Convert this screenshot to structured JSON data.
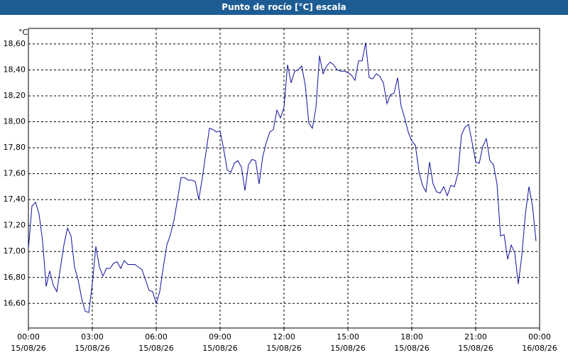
{
  "chart_data": {
    "type": "line",
    "title": "Punto de rocío [°C] escala",
    "y_label": "°C",
    "x": [
      0,
      10,
      20,
      30,
      40,
      50,
      60,
      70,
      80,
      90,
      100,
      110,
      120,
      130,
      140,
      150,
      160,
      170,
      180,
      190,
      200,
      210,
      220,
      230,
      240,
      250,
      260,
      270,
      280,
      290,
      300,
      310,
      320,
      330,
      340,
      350,
      360,
      370,
      380,
      390,
      400,
      410,
      420,
      430,
      440,
      450,
      460,
      470,
      480,
      490,
      500,
      510,
      520,
      530,
      540,
      550,
      560,
      570,
      580,
      590,
      600,
      610,
      620,
      630,
      640,
      650,
      660,
      670,
      680,
      690,
      700,
      710,
      720,
      730,
      740,
      750,
      760,
      770,
      780,
      790,
      800,
      810,
      820,
      830,
      840,
      850,
      860,
      870,
      880,
      890,
      900,
      910,
      920,
      930,
      940,
      950,
      960,
      970,
      980,
      990,
      1000,
      1010,
      1020,
      1030,
      1040,
      1050,
      1060,
      1070,
      1080,
      1090,
      1100,
      1110,
      1120,
      1130,
      1140,
      1150,
      1160,
      1170,
      1180,
      1190,
      1200,
      1210,
      1220,
      1230,
      1240,
      1250,
      1260,
      1270,
      1280,
      1290,
      1300,
      1310,
      1320,
      1330,
      1340,
      1350,
      1360,
      1370,
      1380,
      1390,
      1400,
      1410,
      1420,
      1430
    ],
    "series": [
      {
        "name": "Punto de rocío",
        "color": "#1010a0",
        "values": [
          17.02,
          17.35,
          17.38,
          17.29,
          17.08,
          16.73,
          16.85,
          16.74,
          16.69,
          16.87,
          17.05,
          17.18,
          17.12,
          16.88,
          16.78,
          16.64,
          16.54,
          16.53,
          16.75,
          17.04,
          16.88,
          16.81,
          16.87,
          16.87,
          16.91,
          16.92,
          16.87,
          16.93,
          16.9,
          16.9,
          16.9,
          16.88,
          16.86,
          16.78,
          16.7,
          16.69,
          16.6,
          16.69,
          16.88,
          17.05,
          17.13,
          17.24,
          17.4,
          17.57,
          17.57,
          17.55,
          17.55,
          17.54,
          17.4,
          17.57,
          17.76,
          17.95,
          17.94,
          17.92,
          17.93,
          17.79,
          17.63,
          17.61,
          17.68,
          17.7,
          17.65,
          17.47,
          17.67,
          17.71,
          17.7,
          17.52,
          17.73,
          17.84,
          17.92,
          17.94,
          18.09,
          18.03,
          18.11,
          18.44,
          18.3,
          18.39,
          18.4,
          18.43,
          18.28,
          17.99,
          17.95,
          18.11,
          18.51,
          18.37,
          18.43,
          18.46,
          18.44,
          18.4,
          18.39,
          18.39,
          18.38,
          18.36,
          18.32,
          18.47,
          18.47,
          18.61,
          18.34,
          18.33,
          18.37,
          18.35,
          18.3,
          18.14,
          18.21,
          18.22,
          18.34,
          18.12,
          18.03,
          17.92,
          17.85,
          17.82,
          17.62,
          17.51,
          17.46,
          17.69,
          17.52,
          17.46,
          17.45,
          17.5,
          17.43,
          17.51,
          17.5,
          17.6,
          17.9,
          17.96,
          17.98,
          17.84,
          17.69,
          17.68,
          17.81,
          17.87,
          17.7,
          17.67,
          17.52,
          17.12,
          17.13,
          16.94,
          17.05,
          16.99,
          16.75,
          16.97,
          17.29,
          17.5,
          17.35,
          17.08
        ]
      }
    ],
    "xlim": [
      0,
      1440
    ],
    "xticks": [
      {
        "value": 0,
        "label": "00:00"
      },
      {
        "value": 180,
        "label": "03:00"
      },
      {
        "value": 360,
        "label": "06:00"
      },
      {
        "value": 540,
        "label": "09:00"
      },
      {
        "value": 720,
        "label": "12:00"
      },
      {
        "value": 900,
        "label": "15:00"
      },
      {
        "value": 1080,
        "label": "18:00"
      },
      {
        "value": 1260,
        "label": "21:00"
      },
      {
        "value": 1440,
        "label": "00:00"
      }
    ],
    "xtick_dates": [
      "15/08/26",
      "15/08/26",
      "15/08/26",
      "15/08/26",
      "15/08/26",
      "15/08/26",
      "15/08/26",
      "15/08/26",
      "16/08/26"
    ],
    "ylim": [
      16.41,
      18.72
    ],
    "yticks": [
      {
        "value": 16.6,
        "label": "16,60"
      },
      {
        "value": 16.8,
        "label": "16,80"
      },
      {
        "value": 17.0,
        "label": "17,00"
      },
      {
        "value": 17.2,
        "label": "17,20"
      },
      {
        "value": 17.4,
        "label": "17,40"
      },
      {
        "value": 17.6,
        "label": "17,60"
      },
      {
        "value": 17.8,
        "label": "17,80"
      },
      {
        "value": 18.0,
        "label": "18,00"
      },
      {
        "value": 18.2,
        "label": "18,20"
      },
      {
        "value": 18.4,
        "label": "18,40"
      },
      {
        "value": 18.6,
        "label": "18,60"
      }
    ],
    "grid": true
  }
}
